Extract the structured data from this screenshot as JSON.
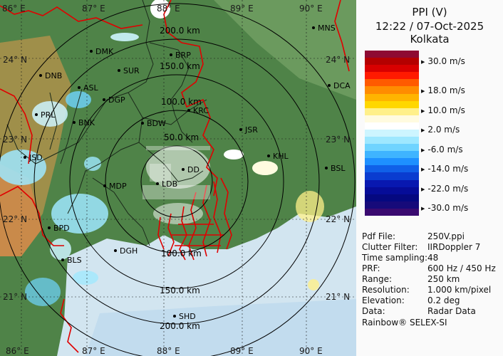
{
  "product": {
    "type": "PPI (V)",
    "datetime": "12:22 / 07-Oct-2025",
    "site": "Kolkata"
  },
  "legend": {
    "unit": "m/s",
    "labels": [
      "30.0 m/s",
      "18.0 m/s",
      "10.0 m/s",
      "2.0 m/s",
      "-6.0 m/s",
      "-14.0 m/s",
      "-22.0 m/s",
      "-30.0 m/s"
    ],
    "colors": [
      "#8e0a32",
      "#b40000",
      "#d80000",
      "#ff1a00",
      "#ff5a00",
      "#ff8c00",
      "#ffb400",
      "#ffd700",
      "#fff08a",
      "#fffbe0",
      "#ffffff",
      "#cdf5ff",
      "#9ee8ff",
      "#6fd4ff",
      "#3fb4ff",
      "#1e90ff",
      "#1060e8",
      "#0a3cd0",
      "#0818b0",
      "#060c98",
      "#050880",
      "#160a7a",
      "#3a0a70"
    ]
  },
  "info": [
    {
      "key": "Pdf File:",
      "value": "250V.ppi"
    },
    {
      "key": "Clutter Filter:",
      "value": "IIRDoppler 7"
    },
    {
      "key": "Time sampling:",
      "value": "48"
    },
    {
      "key": "PRF:",
      "value": "600 Hz / 450 Hz"
    },
    {
      "key": "Range:",
      "value": "250 km"
    },
    {
      "key": "Resolution:",
      "value": "1.000 km/pixel"
    },
    {
      "key": "Elevation:",
      "value": "0.2 deg"
    },
    {
      "key": "Data:",
      "value": "Radar Data"
    }
  ],
  "footer": "Rainbow® SELEX-SI",
  "map": {
    "lon_labels_top": [
      "86° E",
      "87° E",
      "88° E",
      "89° E",
      "90° E"
    ],
    "lon_labels_bottom": [
      "86° E",
      "87° E",
      "88° E",
      "89° E",
      "90° E"
    ],
    "lat_labels_left": [
      "24° N",
      "23° N",
      "22° N",
      "21° N"
    ],
    "lat_labels_right": [
      "24° N",
      "23° N",
      "22° N",
      "21° N"
    ],
    "range_rings_km": [
      50,
      100,
      150,
      200,
      250
    ],
    "range_labels_north": [
      "200.0 km",
      "150.0 km",
      "100.0 km",
      "50.0 km"
    ],
    "range_labels_south": [
      "100.0 km",
      "150.0 km",
      "200.0 km"
    ],
    "stations": [
      "MNS",
      "DMK",
      "BRP",
      "DNB",
      "SUR",
      "ASL",
      "DGP",
      "DCA",
      "KRC",
      "PRL",
      "BNK",
      "BDW",
      "JSR",
      "JSD",
      "KHL",
      "DD",
      "BSL",
      "MDP",
      "LDB",
      "BPD",
      "DGH",
      "BLS",
      "SHD"
    ]
  },
  "colors": {
    "land": "#5a8a4e",
    "sea": "#d4e6f1",
    "rings": "#000000",
    "border": "#e00000",
    "panel_bg": "#fafafa"
  }
}
